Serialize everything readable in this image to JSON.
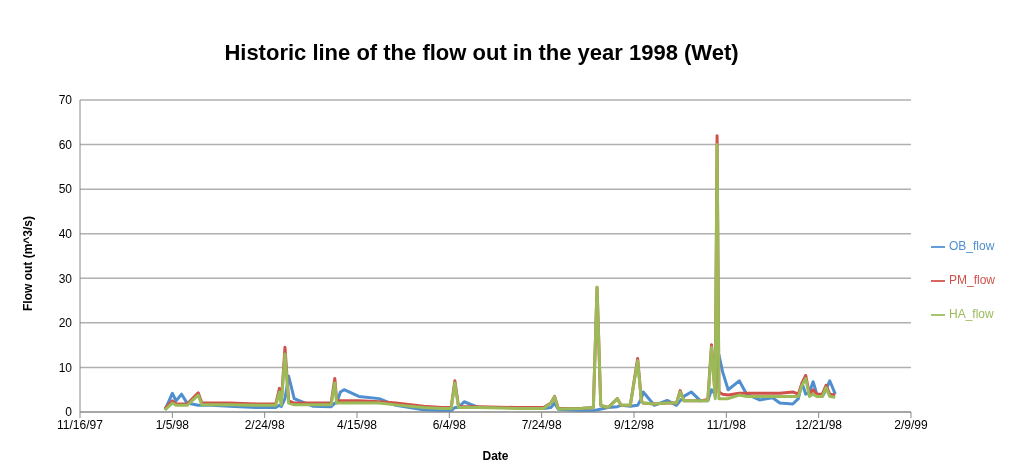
{
  "chart_data": {
    "type": "line",
    "title": "Historic line of the flow out in the year 1998 (Wet)",
    "xlabel": "Date",
    "ylabel": "Flow out (m^3/s)",
    "x": [
      "1998-01-01",
      "1998-01-05",
      "1998-01-07",
      "1998-01-10",
      "1998-01-13",
      "1998-01-19",
      "1998-01-21",
      "1998-01-26",
      "1998-02-05",
      "1998-02-20",
      "1998-03-02",
      "1998-03-04",
      "1998-03-05",
      "1998-03-07",
      "1998-03-09",
      "1998-03-12",
      "1998-03-22",
      "1998-04-01",
      "1998-04-03",
      "1998-04-04",
      "1998-04-06",
      "1998-04-08",
      "1998-04-16",
      "1998-04-27",
      "1998-05-06",
      "1998-05-21",
      "1998-05-31",
      "1998-06-05",
      "1998-06-07",
      "1998-06-09",
      "1998-06-12",
      "1998-06-20",
      "1998-07-10",
      "1998-07-25",
      "1998-07-29",
      "1998-07-31",
      "1998-08-02",
      "1998-08-14",
      "1998-08-21",
      "1998-08-23",
      "1998-08-25",
      "1998-08-29",
      "1998-09-03",
      "1998-09-05",
      "1998-09-10",
      "1998-09-14",
      "1998-09-16",
      "1998-09-17",
      "1998-09-23",
      "1998-09-30",
      "1998-10-05",
      "1998-10-07",
      "1998-10-09",
      "1998-10-13",
      "1998-10-18",
      "1998-10-22",
      "1998-10-24",
      "1998-10-26",
      "1998-10-27",
      "1998-10-28",
      "1998-10-30",
      "1998-11-02",
      "1998-11-08",
      "1998-11-12",
      "1998-11-19",
      "1998-11-26",
      "1998-11-30",
      "1998-12-07",
      "1998-12-10",
      "1998-12-12",
      "1998-12-14",
      "1998-12-16",
      "1998-12-18",
      "1998-12-20",
      "1998-12-23",
      "1998-12-25",
      "1998-12-27",
      "1998-12-30"
    ],
    "series": [
      {
        "name": "OB_flow",
        "color": "#4f8fcf",
        "values": [
          0.5,
          4.2,
          2.5,
          4.0,
          2.0,
          1.5,
          1.5,
          1.5,
          1.3,
          1.0,
          1.0,
          1.5,
          1.2,
          3.0,
          8.0,
          3.0,
          1.3,
          1.2,
          2.0,
          2.0,
          4.5,
          5.0,
          3.5,
          3.0,
          1.5,
          0.5,
          0.3,
          0.3,
          1.0,
          1.0,
          2.3,
          1.0,
          1.0,
          0.8,
          1.0,
          2.0,
          0.6,
          0.3,
          0.3,
          null,
          null,
          1.0,
          1.2,
          1.5,
          1.3,
          1.5,
          3.0,
          4.5,
          1.5,
          2.6,
          1.5,
          2.5,
          3.5,
          4.5,
          2.5,
          2.5,
          5.0,
          4.0,
          null,
          12.8,
          9.0,
          5.0,
          7.0,
          4.0,
          2.7,
          3.2,
          2.0,
          1.8,
          3.0,
          6.5,
          4.0,
          4.5,
          6.8,
          4.0,
          3.5,
          5.0,
          7.0,
          4.0
        ]
      },
      {
        "name": "PM_flow",
        "color": "#d0504a",
        "values": [
          0.8,
          2.5,
          1.8,
          1.8,
          1.8,
          4.3,
          2.0,
          2.0,
          2.0,
          1.8,
          1.8,
          5.3,
          2.0,
          14.5,
          2.5,
          2.0,
          2.0,
          2.0,
          7.5,
          2.5,
          2.5,
          2.5,
          2.5,
          2.3,
          2.0,
          1.3,
          1.0,
          1.0,
          7.0,
          1.2,
          1.2,
          1.2,
          1.0,
          1.0,
          2.0,
          3.5,
          0.8,
          0.8,
          1.0,
          28.0,
          1.5,
          1.0,
          3.0,
          1.5,
          1.5,
          12.0,
          2.5,
          2.0,
          1.8,
          2.0,
          2.0,
          4.8,
          2.5,
          2.5,
          2.5,
          2.8,
          15.1,
          3.5,
          62.0,
          4.5,
          4.0,
          3.8,
          4.2,
          4.2,
          4.2,
          4.2,
          4.2,
          4.5,
          4.0,
          6.5,
          8.2,
          4.0,
          5.0,
          4.0,
          4.0,
          6.0,
          4.0,
          3.8
        ]
      },
      {
        "name": "HA_flow",
        "color": "#9bbb59",
        "values": [
          0.5,
          2.0,
          1.5,
          1.5,
          1.5,
          3.8,
          1.6,
          1.6,
          1.6,
          1.5,
          1.5,
          4.5,
          1.6,
          13.0,
          2.0,
          1.6,
          1.6,
          1.6,
          6.5,
          2.0,
          2.0,
          2.0,
          2.0,
          2.0,
          1.6,
          1.0,
          0.8,
          0.8,
          6.5,
          1.0,
          1.0,
          1.0,
          0.8,
          0.8,
          2.0,
          3.4,
          0.7,
          0.8,
          1.0,
          28.0,
          1.5,
          1.0,
          3.0,
          1.5,
          1.5,
          11.5,
          2.5,
          2.0,
          1.8,
          2.0,
          2.0,
          4.5,
          2.5,
          2.5,
          2.5,
          2.5,
          14.5,
          3.0,
          60.0,
          3.0,
          3.0,
          3.0,
          3.8,
          3.5,
          3.5,
          3.5,
          3.5,
          3.5,
          3.5,
          6.0,
          7.5,
          3.5,
          4.0,
          3.5,
          3.5,
          5.5,
          3.5,
          3.3
        ]
      }
    ],
    "xlim": [
      "1997-11-16",
      "1999-02-09"
    ],
    "xticks": [
      {
        "value": "1997-11-16",
        "label": "11/16/97"
      },
      {
        "value": "1998-01-05",
        "label": "1/5/98"
      },
      {
        "value": "1998-02-24",
        "label": "2/24/98"
      },
      {
        "value": "1998-04-15",
        "label": "4/15/98"
      },
      {
        "value": "1998-06-04",
        "label": "6/4/98"
      },
      {
        "value": "1998-07-24",
        "label": "7/24/98"
      },
      {
        "value": "1998-09-12",
        "label": "9/12/98"
      },
      {
        "value": "1998-11-01",
        "label": "11/1/98"
      },
      {
        "value": "1998-12-21",
        "label": "12/21/98"
      },
      {
        "value": "1999-02-09",
        "label": "2/9/99"
      }
    ],
    "ylim": [
      0,
      70
    ],
    "yticks": [
      0,
      10,
      20,
      30,
      40,
      50,
      60,
      70
    ],
    "grid": "y",
    "legend": "right",
    "marker": "none",
    "line_style": "solid"
  }
}
